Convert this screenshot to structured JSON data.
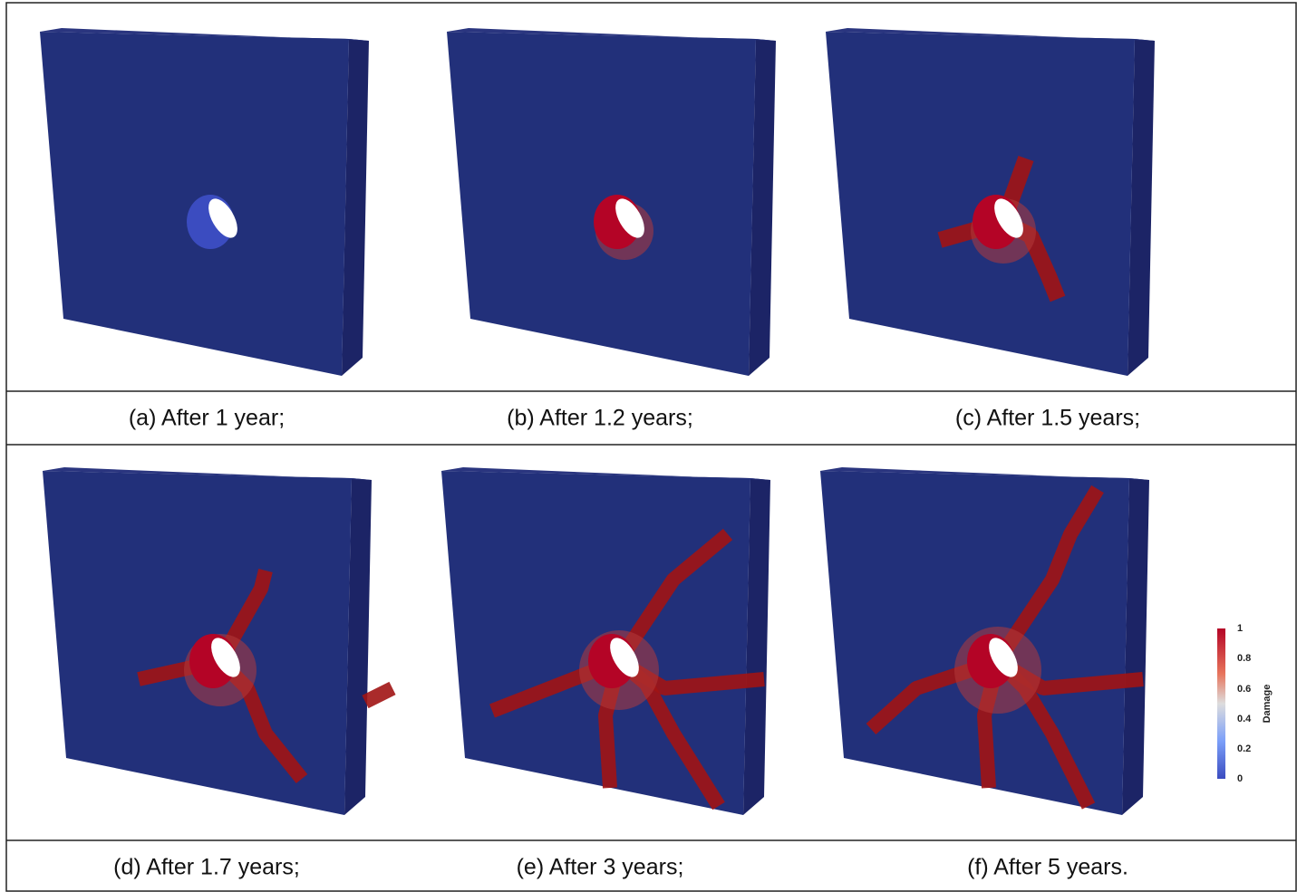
{
  "table": {
    "rows": [
      [
        "(a) After 1 year;",
        "(b) After 1.2 years;",
        "(c) After 1.5 years;"
      ],
      [
        "(d) After 1.7 years;",
        "(e) After 3 years;",
        "(f) After 5 years."
      ]
    ]
  },
  "colorbar": {
    "title": "Damage",
    "ticks": [
      "1",
      "0.8",
      "0.6",
      "0.4",
      "0.2",
      "0"
    ]
  }
}
